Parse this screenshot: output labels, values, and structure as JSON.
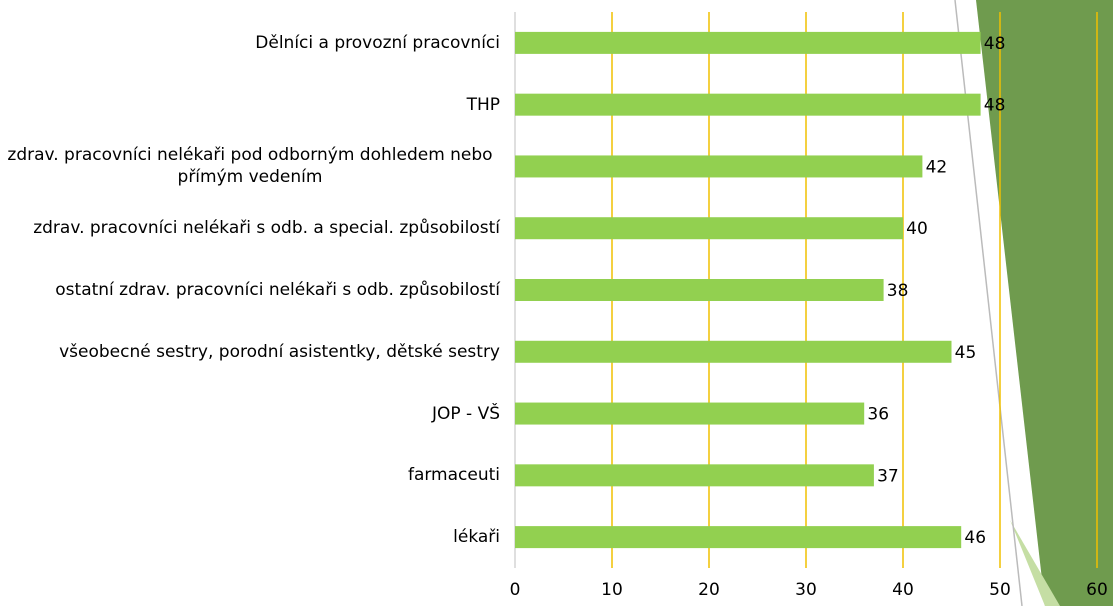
{
  "chart_data": {
    "type": "barh",
    "categories": [
      "Dělníci a provozní pracovníci",
      "THP",
      "zdrav. pracovníci nelékaři pod odborným dohledem nebo přímým vedením",
      "zdrav. pracovníci nelékaři s odb. a special. způsobilostí",
      "ostatní zdrav. pracovníci nelékaři s odb. způsobilostí",
      "všeobecné sestry, porodní asistentky, dětské sestry",
      "JOP - VŠ",
      "farmaceuti",
      "lékaři"
    ],
    "values": [
      48,
      48,
      42,
      40,
      38,
      45,
      36,
      37,
      46
    ],
    "color": "#92d050",
    "xlim": [
      0,
      60
    ],
    "xticks": [
      0,
      10,
      20,
      30,
      40,
      50,
      60
    ],
    "grid": true,
    "grid_color": "#f0c000"
  }
}
